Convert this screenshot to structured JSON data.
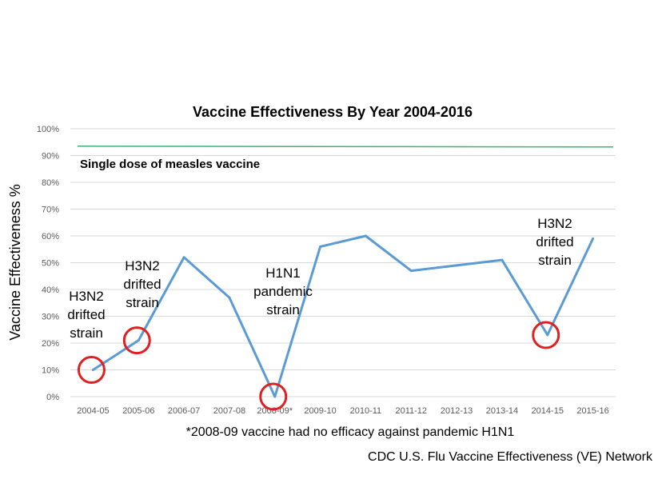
{
  "chart_data": {
    "type": "line",
    "title": "Vaccine Effectiveness By Year 2004-2016",
    "xlabel": "",
    "ylabel": "Vaccine Effectiveness %",
    "categories": [
      "2004-05",
      "2005-06",
      "2006-07",
      "2007-08",
      "2008-09*",
      "2009-10",
      "2010-11",
      "2011-12",
      "2012-13",
      "2013-14",
      "2014-15",
      "2015-16"
    ],
    "series": [
      {
        "values": [
          10,
          21,
          52,
          37,
          0,
          56,
          60,
          47,
          49,
          51,
          23,
          59
        ],
        "color": "#5B9BD5"
      }
    ],
    "ylim": [
      0,
      100
    ],
    "yticks": [
      "0%",
      "10%",
      "20%",
      "30%",
      "40%",
      "50%",
      "60%",
      "70%",
      "80%",
      "90%",
      "100%"
    ],
    "grid": true,
    "legend": "none",
    "reference_line": {
      "label": "Single dose of measles vaccine",
      "value": 93.5,
      "color": "#3CB371"
    },
    "annotations": [
      {
        "lines": [
          "H3N2",
          "drifted",
          "strain"
        ],
        "index": 0
      },
      {
        "lines": [
          "H3N2",
          "drifted",
          "strain"
        ],
        "index": 1
      },
      {
        "lines": [
          "H1N1",
          "pandemic",
          "strain"
        ],
        "index": 4
      },
      {
        "lines": [
          "H3N2",
          "drifted",
          "strain"
        ],
        "index": 10
      }
    ],
    "highlight_color": "#E02020",
    "footnote": "*2008-09 vaccine had no efficacy against pandemic H1N1",
    "source": "CDC U.S. Flu Vaccine Effectiveness (VE) Network"
  }
}
